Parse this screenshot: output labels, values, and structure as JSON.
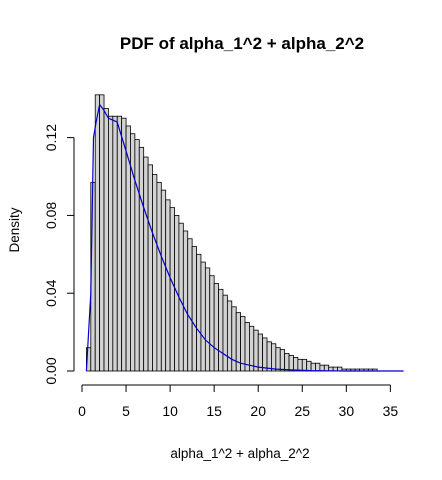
{
  "chart_data": {
    "type": "bar",
    "title": "PDF of alpha_1^2 + alpha_2^2",
    "xlabel": "alpha_1^2 + alpha_2^2",
    "ylabel": "Density",
    "xlim": [
      0,
      37
    ],
    "ylim": [
      0,
      0.145
    ],
    "x_ticks": [
      0,
      5,
      10,
      15,
      20,
      25,
      30,
      35
    ],
    "y_ticks": [
      0.0,
      0.04,
      0.08,
      0.12
    ],
    "x_tick_labels": [
      "0",
      "5",
      "10",
      "15",
      "20",
      "25",
      "30",
      "35"
    ],
    "y_tick_labels": [
      "0.00",
      "0.04",
      "0.08",
      "0.12"
    ],
    "histogram": {
      "bin_width": 0.5,
      "bin_start": 0.5,
      "fill": "#d3d3d3",
      "stroke": "#000000",
      "densities": [
        0.012,
        0.097,
        0.142,
        0.142,
        0.135,
        0.131,
        0.131,
        0.131,
        0.13,
        0.126,
        0.122,
        0.119,
        0.115,
        0.11,
        0.106,
        0.101,
        0.097,
        0.093,
        0.088,
        0.084,
        0.08,
        0.076,
        0.072,
        0.068,
        0.064,
        0.06,
        0.056,
        0.053,
        0.049,
        0.045,
        0.042,
        0.039,
        0.036,
        0.033,
        0.03,
        0.028,
        0.025,
        0.023,
        0.021,
        0.019,
        0.017,
        0.015,
        0.014,
        0.012,
        0.011,
        0.009,
        0.008,
        0.007,
        0.006,
        0.006,
        0.005,
        0.004,
        0.004,
        0.003,
        0.003,
        0.002,
        0.002,
        0.002,
        0.001,
        0.001,
        0.001,
        0.001,
        0.001,
        0.001,
        0.001,
        0.001
      ]
    },
    "density_curve": {
      "color": "#0000cc",
      "x": [
        0.5,
        1.0,
        1.3,
        1.6,
        2.0,
        2.5,
        3.0,
        4.0,
        5.0,
        6.0,
        7.0,
        8.0,
        9.0,
        10.0,
        11.0,
        12.0,
        13.0,
        14.0,
        15.0,
        16.0,
        17.0,
        18.0,
        19.0,
        20.0,
        22.0,
        24.0,
        26.0,
        28.0,
        30.0,
        33.0,
        36.5
      ],
      "y": [
        0.0,
        0.04,
        0.12,
        0.128,
        0.137,
        0.134,
        0.13,
        0.128,
        0.113,
        0.098,
        0.084,
        0.071,
        0.059,
        0.048,
        0.038,
        0.029,
        0.022,
        0.016,
        0.012,
        0.009,
        0.006,
        0.004,
        0.003,
        0.002,
        0.001,
        0.0005,
        0.0002,
        0.0001,
        0.0,
        0.0,
        0.0
      ]
    }
  }
}
